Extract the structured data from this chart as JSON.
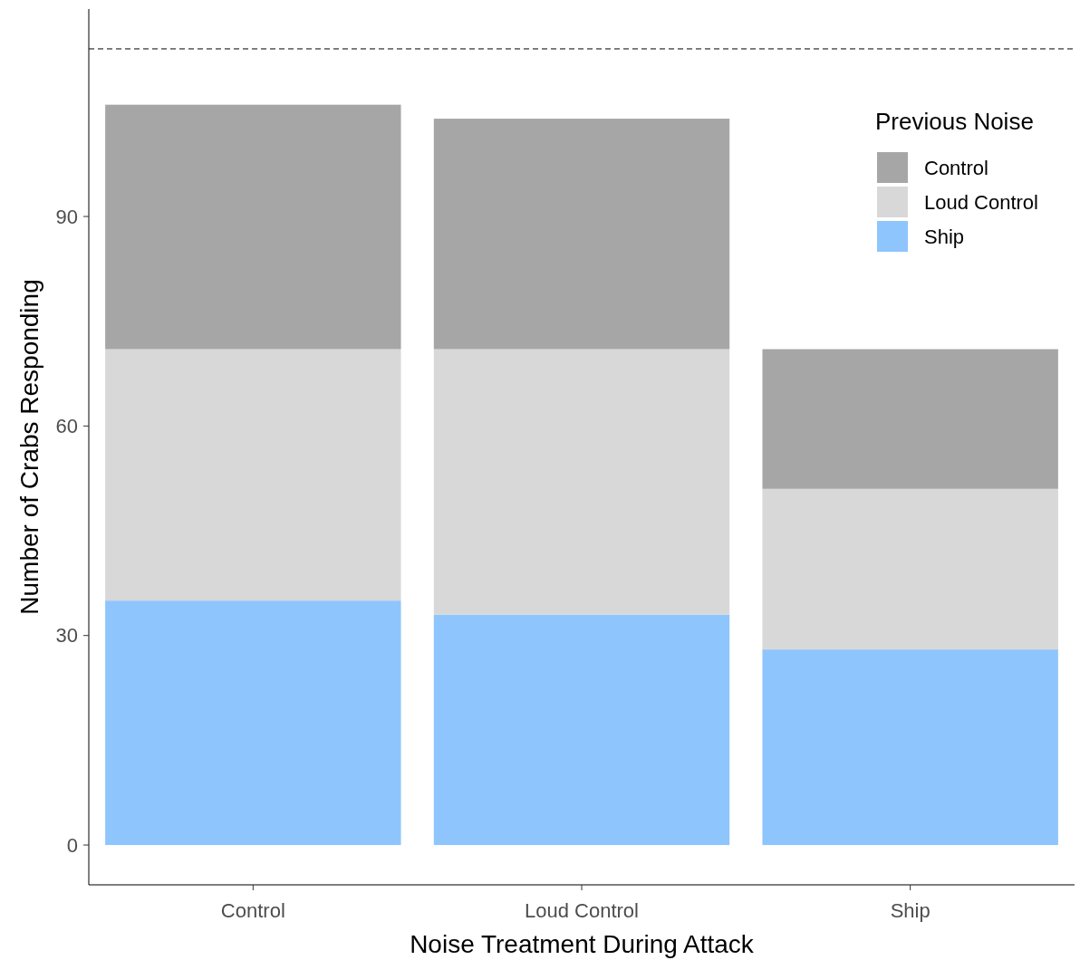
{
  "chart_data": {
    "type": "bar",
    "stacked": true,
    "xlabel": "Noise Treatment During Attack",
    "ylabel": "Number of Crabs Responding",
    "legend_title": "Previous Noise",
    "legend": "top right",
    "grid": false,
    "categories": [
      "Control",
      "Loud Control",
      "Ship"
    ],
    "series": [
      {
        "name": "Ship",
        "color": "#8ec5fd",
        "values": [
          35,
          33,
          28
        ]
      },
      {
        "name": "Loud Control",
        "color": "#d8d8d8",
        "values": [
          36,
          38,
          23
        ]
      },
      {
        "name": "Control",
        "color": "#a6a6a6",
        "values": [
          35,
          33,
          20
        ]
      }
    ],
    "ylim": [
      -5.7,
      119.7
    ],
    "yticks": [
      0,
      30,
      60,
      90
    ],
    "ref_lines": [
      {
        "axis": "y",
        "value": 114,
        "line_style": "dashed",
        "color": "#000000"
      }
    ]
  }
}
